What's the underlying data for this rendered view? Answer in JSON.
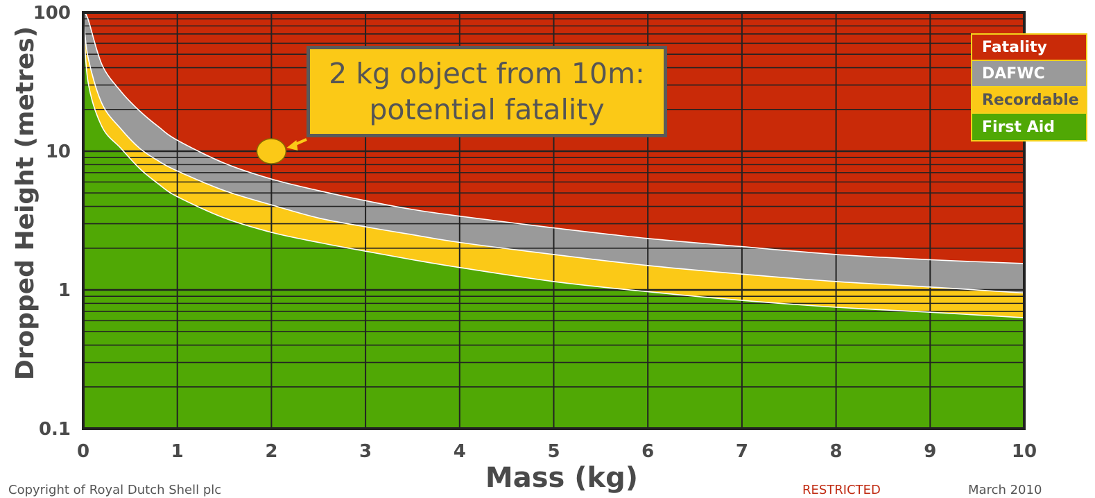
{
  "chart_data": {
    "type": "area",
    "xlabel": "Mass (kg)",
    "ylabel": "Dropped Height (metres)",
    "xlim": [
      0,
      10
    ],
    "ylim": [
      0.1,
      100
    ],
    "yscale": "log",
    "grid": true,
    "x_ticks": [
      "0",
      "1",
      "2",
      "3",
      "4",
      "5",
      "6",
      "7",
      "8",
      "9",
      "10"
    ],
    "y_ticks": [
      "0.1",
      "1",
      "10",
      "100"
    ],
    "legend_position": "top-right",
    "regions": [
      {
        "name": "Fatality",
        "color": "#c92a08"
      },
      {
        "name": "DAFWC",
        "color": "#9a9a9a"
      },
      {
        "name": "Recordable",
        "color": "#fbc917"
      },
      {
        "name": "First Aid",
        "color": "#50a805"
      }
    ],
    "series": [
      {
        "name": "First Aid",
        "x": [
          0.05,
          0.2,
          0.4,
          0.6,
          0.8,
          1,
          1.5,
          2,
          2.5,
          3,
          3.5,
          4,
          5,
          6,
          7,
          8,
          9,
          10
        ],
        "values": [
          32,
          15,
          10.5,
          7.5,
          5.8,
          4.7,
          3.3,
          2.6,
          2.2,
          1.9,
          1.65,
          1.45,
          1.15,
          0.97,
          0.84,
          0.75,
          0.69,
          0.63
        ]
      },
      {
        "name": "Recordable",
        "x": [
          0.05,
          0.2,
          0.4,
          0.6,
          0.8,
          1,
          1.5,
          2,
          2.5,
          3,
          3.5,
          4,
          5,
          6,
          7,
          8,
          9,
          10
        ],
        "values": [
          48,
          22,
          14.5,
          10.5,
          8.5,
          7.2,
          5.2,
          4.1,
          3.3,
          2.85,
          2.5,
          2.2,
          1.8,
          1.5,
          1.3,
          1.15,
          1.05,
          0.95
        ]
      },
      {
        "name": "DAFWC",
        "x": [
          0.05,
          0.2,
          0.4,
          0.6,
          0.8,
          1,
          1.5,
          2,
          2.5,
          3,
          3.5,
          4,
          5,
          6,
          7,
          8,
          9,
          10
        ],
        "values": [
          90,
          42,
          27,
          19.5,
          15,
          12,
          8.2,
          6.3,
          5.2,
          4.4,
          3.8,
          3.4,
          2.8,
          2.35,
          2.05,
          1.8,
          1.65,
          1.55
        ]
      }
    ],
    "annotation": {
      "line1": "2 kg object from 10m:",
      "line2": "potential fatality",
      "point": {
        "x": 2,
        "y": 10
      },
      "point_color": "#fbc917"
    }
  },
  "legend": [
    {
      "label": "Fatality",
      "bg": "#c92a08",
      "fg": "#ffffff"
    },
    {
      "label": "DAFWC",
      "bg": "#9a9a9a",
      "fg": "#ffffff"
    },
    {
      "label": "Recordable",
      "bg": "#fbc917",
      "fg": "#555555"
    },
    {
      "label": "First Aid",
      "bg": "#50a805",
      "fg": "#ffffff"
    }
  ],
  "footer": {
    "copyright": "Copyright of Royal Dutch Shell plc",
    "classification": "RESTRICTED",
    "date": "March 2010"
  }
}
